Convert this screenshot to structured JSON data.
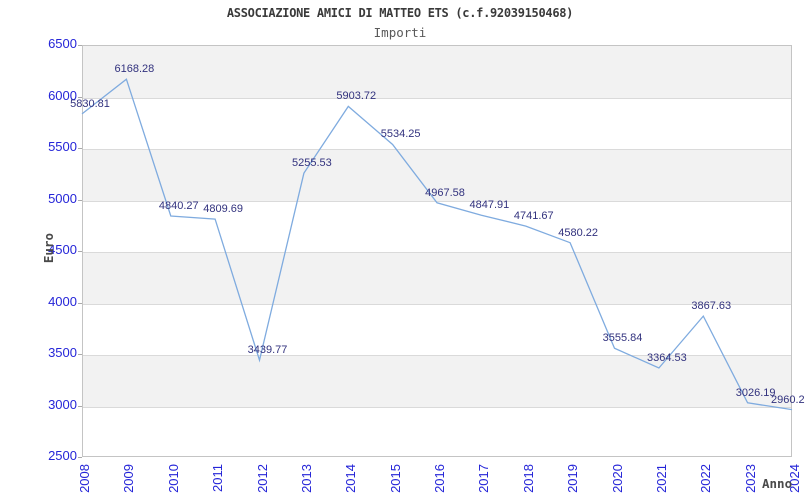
{
  "chart_data": {
    "type": "line",
    "title": "ASSOCIAZIONE AMICI DI MATTEO ETS (c.f.92039150468)",
    "subtitle": "Importi",
    "xlabel": "Anno",
    "ylabel": "Euro",
    "categories": [
      "2008",
      "2009",
      "2010",
      "2011",
      "2012",
      "2013",
      "2014",
      "2015",
      "2016",
      "2017",
      "2018",
      "2019",
      "2020",
      "2021",
      "2022",
      "2023",
      "2024"
    ],
    "values": [
      5830.81,
      6168.28,
      4840.27,
      4809.69,
      3439.77,
      5255.53,
      5903.72,
      5534.25,
      4967.58,
      4847.91,
      4741.67,
      4580.22,
      3555.84,
      3364.53,
      3867.63,
      3026.19,
      2960.2
    ],
    "point_labels": [
      "5830.81",
      "6168.28",
      "4840.27",
      "4809.69",
      "3439.77",
      "5255.53",
      "5903.72",
      "5534.25",
      "4967.58",
      "4847.91",
      "4741.67",
      "4580.22",
      "3555.84",
      "3364.53",
      "3867.63",
      "3026.19",
      "2960.2"
    ],
    "ylim": [
      2500,
      6500
    ],
    "ytick_step": 500,
    "yticks": [
      "2500",
      "3000",
      "3500",
      "4000",
      "4500",
      "5000",
      "5500",
      "6000",
      "6500"
    ],
    "grid": "horizontal",
    "bands": "alternating, gray band at top (6000-6500), every other 500-step",
    "legend": "none",
    "colors": {
      "line": "#7fabdf",
      "tick_label": "#2525d8",
      "point_label": "#32327e",
      "band": "#f2f2f2",
      "grid": "#dadada",
      "border": "#c4c4c4",
      "tick_mark": "#aaaaaa",
      "title": "#3a3a3a",
      "subtitle": "#5a5a5a",
      "axis_title": "#4a4a4a",
      "background": "#ffffff"
    }
  }
}
